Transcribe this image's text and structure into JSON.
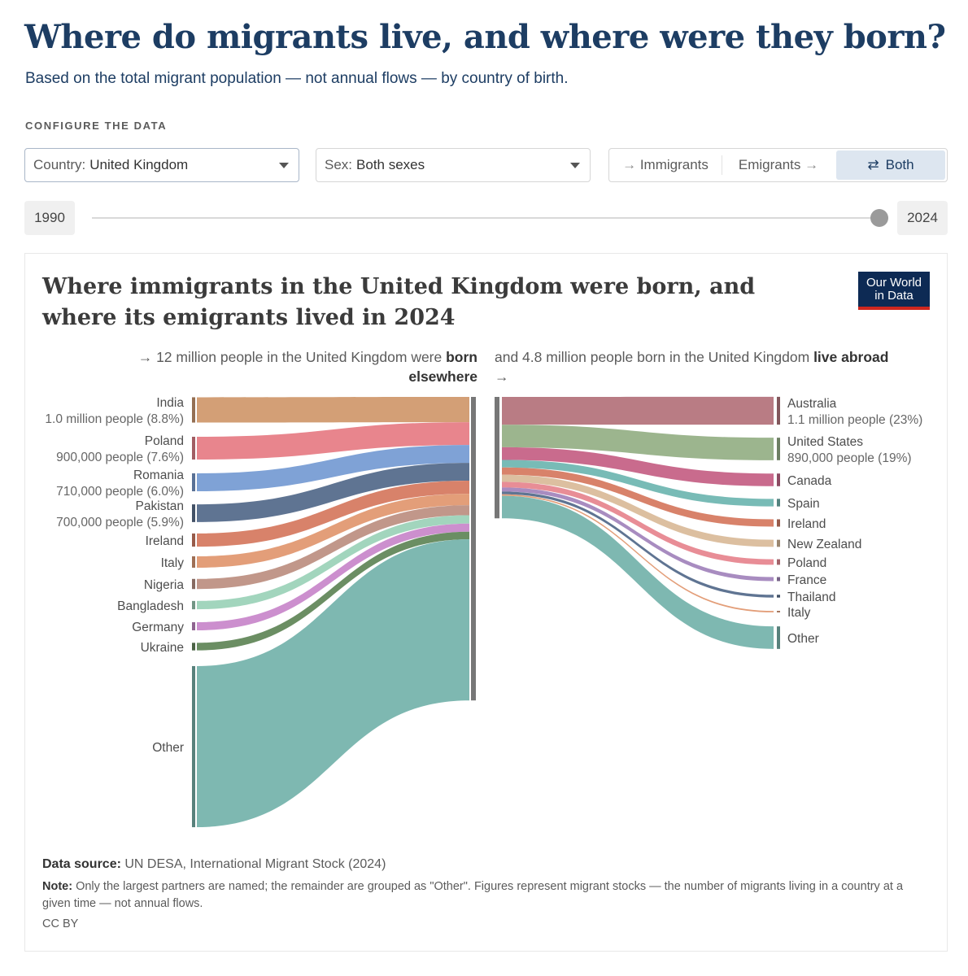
{
  "page": {
    "title": "Where do migrants live, and where were they born?",
    "subtitle": "Based on the total migrant population — not annual flows — by country of birth."
  },
  "controls": {
    "config_label": "CONFIGURE THE DATA",
    "country_label": "Country:",
    "country_value": "United Kingdom",
    "sex_label": "Sex:",
    "sex_value": "Both sexes",
    "toggle": {
      "immigrants": "Immigrants",
      "emigrants": "Emigrants",
      "both": "Both",
      "selected": "Both"
    },
    "slider": {
      "start_year": "1990",
      "end_year": "2024",
      "selected_year": 2024
    }
  },
  "chart": {
    "title": "Where immigrants in the United Kingdom were born, and where its emigrants lived in 2024",
    "logo_line1": "Our World",
    "logo_line2": "in Data",
    "left_header_pre": "→ 12 million people in the United Kingdom were ",
    "left_header_bold": "born elsewhere",
    "right_header_pre": "and 4.8 million people born in the United Kingdom ",
    "right_header_bold": "live abroad",
    "right_header_arrow": "→"
  },
  "chart_data": {
    "type": "sankey",
    "year": 2024,
    "country": "United Kingdom",
    "immigrants": {
      "total": 12000000,
      "flows": [
        {
          "name": "India",
          "value": 1000000,
          "label": "1.0 million people (8.8%)",
          "color": "#d39f76"
        },
        {
          "name": "Poland",
          "value": 900000,
          "label": "900,000 people (7.6%)",
          "color": "#e8858d"
        },
        {
          "name": "Romania",
          "value": 710000,
          "label": "710,000 people (6.0%)",
          "color": "#7fa2d6"
        },
        {
          "name": "Pakistan",
          "value": 700000,
          "label": "700,000 people (5.9%)",
          "color": "#5f7492"
        },
        {
          "name": "Ireland",
          "value": 520000,
          "label": "",
          "color": "#d8826a"
        },
        {
          "name": "Italy",
          "value": 450000,
          "label": "",
          "color": "#e39e79"
        },
        {
          "name": "Nigeria",
          "value": 400000,
          "label": "",
          "color": "#c1978a"
        },
        {
          "name": "Bangladesh",
          "value": 330000,
          "label": "",
          "color": "#a2d5bd"
        },
        {
          "name": "Germany",
          "value": 320000,
          "label": "",
          "color": "#cc8fce"
        },
        {
          "name": "Ukraine",
          "value": 300000,
          "label": "",
          "color": "#6b8e63"
        },
        {
          "name": "Other",
          "value": 6370000,
          "label": "",
          "color": "#7eb8b1"
        }
      ]
    },
    "emigrants": {
      "total": 4800000,
      "flows": [
        {
          "name": "Australia",
          "value": 1100000,
          "label": "1.1 million people (23%)",
          "color": "#b97c84"
        },
        {
          "name": "United States",
          "value": 890000,
          "label": "890,000 people (19%)",
          "color": "#9cb58e"
        },
        {
          "name": "Canada",
          "value": 500000,
          "label": "",
          "color": "#c96b8d"
        },
        {
          "name": "Spain",
          "value": 300000,
          "label": "",
          "color": "#78bbb6"
        },
        {
          "name": "Ireland",
          "value": 290000,
          "label": "",
          "color": "#d8826a"
        },
        {
          "name": "New Zealand",
          "value": 280000,
          "label": "",
          "color": "#dcbfa0"
        },
        {
          "name": "Poland",
          "value": 220000,
          "label": "",
          "color": "#e88d96"
        },
        {
          "name": "France",
          "value": 160000,
          "label": "",
          "color": "#a88cc0"
        },
        {
          "name": "Thailand",
          "value": 110000,
          "label": "",
          "color": "#5f7492"
        },
        {
          "name": "Italy",
          "value": 60000,
          "label": "",
          "color": "#e39e79"
        },
        {
          "name": "Other",
          "value": 890000,
          "label": "",
          "color": "#7eb8b1"
        }
      ]
    },
    "node_color": "#777777"
  },
  "footer": {
    "source_label": "Data source:",
    "source_text": " UN DESA, International Migrant Stock (2024)",
    "note_label": "Note:",
    "note_text": " Only the largest partners are named; the remainder are grouped as \"Other\". Figures represent migrant stocks — the number of migrants living in a country at a given time — not annual flows.",
    "license": "CC BY"
  }
}
